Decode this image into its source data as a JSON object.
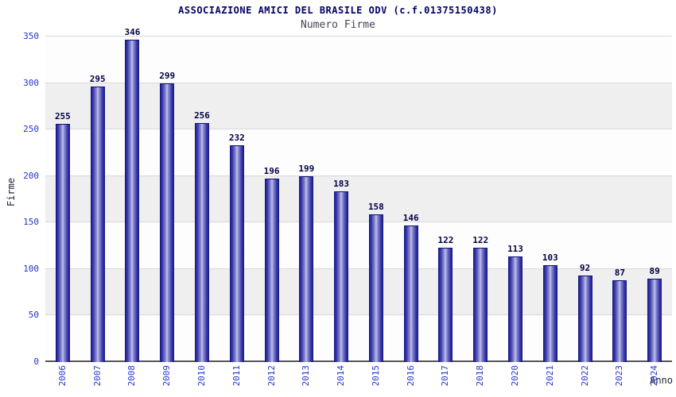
{
  "chart_data": {
    "type": "bar",
    "title": "ASSOCIAZIONE AMICI DEL BRASILE ODV (c.f.01375150438)",
    "subtitle": "Numero Firme",
    "xlabel": "Anno",
    "ylabel": "Firme",
    "categories": [
      "2006",
      "2007",
      "2008",
      "2009",
      "2010",
      "2011",
      "2012",
      "2013",
      "2014",
      "2015",
      "2016",
      "2017",
      "2018",
      "2020",
      "2021",
      "2022",
      "2023",
      "2024"
    ],
    "values": [
      255,
      295,
      346,
      299,
      256,
      232,
      196,
      199,
      183,
      158,
      146,
      122,
      122,
      113,
      103,
      92,
      87,
      89
    ],
    "ylim": [
      0,
      350
    ],
    "ytick_step": 50,
    "grid": true,
    "legend": "none",
    "colors": {
      "bar_dark": "#15157d",
      "bar_mid": "#3a3aae",
      "bar_light": "#c9c9ee",
      "tick_label": "#2233cc",
      "title": "#000066",
      "subtitle": "#444455",
      "band": "#efefef",
      "gridline": "#d9d9d9"
    }
  }
}
